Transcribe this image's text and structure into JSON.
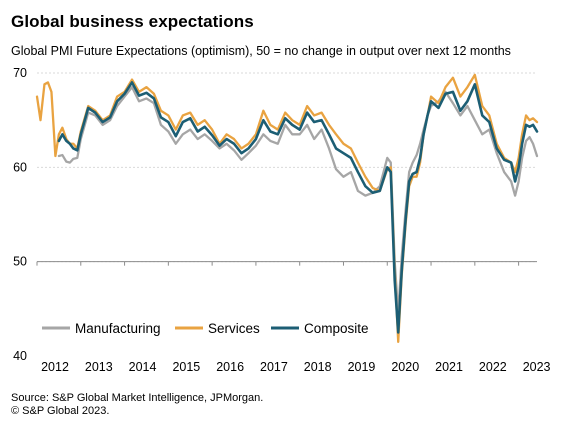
{
  "header": {
    "title": "Global business expectations",
    "subtitle": "Global PMI Future Expectations (optimism), 50 = no change in output over next 12 months"
  },
  "footer": {
    "source": "Source: S&P Global Market Intelligence, JPMorgan.",
    "copyright": "© S&P Global 2023."
  },
  "chart_data": {
    "type": "line",
    "title": "Global business expectations",
    "xlabel": "",
    "ylabel": "",
    "xlim": [
      2012.0,
      2023.42
    ],
    "ylim": [
      40,
      70
    ],
    "yticks": [
      40,
      50,
      60,
      70
    ],
    "xticks": [
      "2012",
      "2013",
      "2014",
      "2015",
      "2016",
      "2017",
      "2018",
      "2019",
      "2020",
      "2021",
      "2022",
      "2023"
    ],
    "grid": true,
    "legend_position": "bottom-left",
    "series": [
      {
        "name": "Manufacturing",
        "color": "#a6a6a6",
        "points": [
          [
            2012.5,
            61.2
          ],
          [
            2012.58,
            61.3
          ],
          [
            2012.67,
            60.6
          ],
          [
            2012.75,
            60.5
          ],
          [
            2012.83,
            60.9
          ],
          [
            2012.92,
            61.0
          ],
          [
            2013.0,
            63.0
          ],
          [
            2013.17,
            65.8
          ],
          [
            2013.33,
            65.5
          ],
          [
            2013.5,
            64.5
          ],
          [
            2013.67,
            65.0
          ],
          [
            2013.83,
            66.5
          ],
          [
            2014.0,
            67.5
          ],
          [
            2014.17,
            68.5
          ],
          [
            2014.33,
            67.0
          ],
          [
            2014.5,
            67.3
          ],
          [
            2014.67,
            66.8
          ],
          [
            2014.83,
            64.5
          ],
          [
            2015.0,
            63.8
          ],
          [
            2015.17,
            62.5
          ],
          [
            2015.33,
            63.5
          ],
          [
            2015.5,
            64.0
          ],
          [
            2015.67,
            63.0
          ],
          [
            2015.83,
            63.5
          ],
          [
            2016.0,
            62.8
          ],
          [
            2016.17,
            62.0
          ],
          [
            2016.33,
            62.5
          ],
          [
            2016.5,
            61.8
          ],
          [
            2016.67,
            60.8
          ],
          [
            2016.83,
            61.5
          ],
          [
            2017.0,
            62.3
          ],
          [
            2017.17,
            63.5
          ],
          [
            2017.33,
            62.8
          ],
          [
            2017.5,
            62.5
          ],
          [
            2017.67,
            64.5
          ],
          [
            2017.83,
            63.5
          ],
          [
            2018.0,
            63.5
          ],
          [
            2018.17,
            64.5
          ],
          [
            2018.33,
            63.0
          ],
          [
            2018.5,
            64.0
          ],
          [
            2018.67,
            62.0
          ],
          [
            2018.83,
            59.8
          ],
          [
            2019.0,
            59.0
          ],
          [
            2019.17,
            59.5
          ],
          [
            2019.33,
            57.5
          ],
          [
            2019.5,
            57.0
          ],
          [
            2019.67,
            57.3
          ],
          [
            2019.83,
            58.0
          ],
          [
            2020.0,
            61.0
          ],
          [
            2020.08,
            60.5
          ],
          [
            2020.17,
            50.0
          ],
          [
            2020.25,
            44.5
          ],
          [
            2020.33,
            50.5
          ],
          [
            2020.42,
            55.5
          ],
          [
            2020.5,
            59.5
          ],
          [
            2020.58,
            60.5
          ],
          [
            2020.67,
            61.3
          ],
          [
            2020.75,
            62.5
          ],
          [
            2020.83,
            64.0
          ],
          [
            2020.92,
            65.5
          ],
          [
            2021.0,
            66.5
          ],
          [
            2021.17,
            67.0
          ],
          [
            2021.33,
            68.0
          ],
          [
            2021.5,
            66.8
          ],
          [
            2021.67,
            65.5
          ],
          [
            2021.83,
            66.5
          ],
          [
            2022.0,
            65.0
          ],
          [
            2022.17,
            63.5
          ],
          [
            2022.33,
            64.0
          ],
          [
            2022.5,
            61.5
          ],
          [
            2022.67,
            59.5
          ],
          [
            2022.83,
            58.5
          ],
          [
            2022.92,
            57.0
          ],
          [
            2023.0,
            58.5
          ],
          [
            2023.08,
            61.0
          ],
          [
            2023.17,
            62.8
          ],
          [
            2023.25,
            63.2
          ],
          [
            2023.33,
            62.5
          ],
          [
            2023.42,
            61.2
          ]
        ]
      },
      {
        "name": "Services",
        "color": "#e9a341",
        "points": [
          [
            2012.0,
            67.5
          ],
          [
            2012.08,
            65.0
          ],
          [
            2012.17,
            68.8
          ],
          [
            2012.25,
            69.0
          ],
          [
            2012.33,
            68.0
          ],
          [
            2012.42,
            61.2
          ],
          [
            2012.5,
            63.5
          ],
          [
            2012.58,
            64.2
          ],
          [
            2012.67,
            63.0
          ],
          [
            2012.75,
            62.5
          ],
          [
            2012.83,
            62.5
          ],
          [
            2012.92,
            62.0
          ],
          [
            2013.0,
            63.8
          ],
          [
            2013.17,
            66.5
          ],
          [
            2013.33,
            66.0
          ],
          [
            2013.5,
            65.0
          ],
          [
            2013.67,
            65.5
          ],
          [
            2013.83,
            67.5
          ],
          [
            2014.0,
            68.0
          ],
          [
            2014.17,
            69.3
          ],
          [
            2014.33,
            68.0
          ],
          [
            2014.5,
            68.5
          ],
          [
            2014.67,
            67.8
          ],
          [
            2014.83,
            66.0
          ],
          [
            2015.0,
            65.5
          ],
          [
            2015.17,
            64.0
          ],
          [
            2015.33,
            65.5
          ],
          [
            2015.5,
            65.8
          ],
          [
            2015.67,
            64.5
          ],
          [
            2015.83,
            65.0
          ],
          [
            2016.0,
            64.0
          ],
          [
            2016.17,
            62.5
          ],
          [
            2016.33,
            63.5
          ],
          [
            2016.5,
            63.0
          ],
          [
            2016.67,
            62.0
          ],
          [
            2016.83,
            62.5
          ],
          [
            2017.0,
            63.5
          ],
          [
            2017.17,
            66.0
          ],
          [
            2017.33,
            64.5
          ],
          [
            2017.5,
            64.0
          ],
          [
            2017.67,
            65.8
          ],
          [
            2017.83,
            65.0
          ],
          [
            2018.0,
            64.5
          ],
          [
            2018.17,
            66.5
          ],
          [
            2018.33,
            65.5
          ],
          [
            2018.5,
            65.8
          ],
          [
            2018.67,
            64.5
          ],
          [
            2018.83,
            63.5
          ],
          [
            2019.0,
            62.5
          ],
          [
            2019.17,
            62.0
          ],
          [
            2019.33,
            60.5
          ],
          [
            2019.5,
            59.0
          ],
          [
            2019.67,
            57.8
          ],
          [
            2019.83,
            57.5
          ],
          [
            2020.0,
            59.8
          ],
          [
            2020.08,
            60.0
          ],
          [
            2020.17,
            49.0
          ],
          [
            2020.25,
            41.5
          ],
          [
            2020.33,
            48.5
          ],
          [
            2020.42,
            54.0
          ],
          [
            2020.5,
            58.0
          ],
          [
            2020.58,
            59.0
          ],
          [
            2020.67,
            59.0
          ],
          [
            2020.75,
            60.5
          ],
          [
            2020.83,
            63.5
          ],
          [
            2020.92,
            65.5
          ],
          [
            2021.0,
            67.5
          ],
          [
            2021.17,
            66.8
          ],
          [
            2021.33,
            68.5
          ],
          [
            2021.5,
            69.5
          ],
          [
            2021.67,
            67.5
          ],
          [
            2021.83,
            68.5
          ],
          [
            2022.0,
            69.8
          ],
          [
            2022.17,
            66.5
          ],
          [
            2022.33,
            65.5
          ],
          [
            2022.5,
            62.5
          ],
          [
            2022.67,
            61.0
          ],
          [
            2022.83,
            60.5
          ],
          [
            2022.92,
            59.5
          ],
          [
            2023.0,
            61.0
          ],
          [
            2023.08,
            63.5
          ],
          [
            2023.17,
            65.5
          ],
          [
            2023.25,
            65.0
          ],
          [
            2023.33,
            65.2
          ],
          [
            2023.42,
            64.8
          ]
        ]
      },
      {
        "name": "Composite",
        "color": "#1c5e74",
        "points": [
          [
            2012.5,
            62.8
          ],
          [
            2012.58,
            63.5
          ],
          [
            2012.67,
            62.8
          ],
          [
            2012.75,
            62.5
          ],
          [
            2012.83,
            62.0
          ],
          [
            2012.92,
            61.8
          ],
          [
            2013.0,
            63.5
          ],
          [
            2013.17,
            66.3
          ],
          [
            2013.33,
            65.8
          ],
          [
            2013.5,
            64.8
          ],
          [
            2013.67,
            65.3
          ],
          [
            2013.83,
            67.0
          ],
          [
            2014.0,
            67.8
          ],
          [
            2014.17,
            69.0
          ],
          [
            2014.33,
            67.6
          ],
          [
            2014.5,
            67.9
          ],
          [
            2014.67,
            67.3
          ],
          [
            2014.83,
            65.3
          ],
          [
            2015.0,
            64.8
          ],
          [
            2015.17,
            63.3
          ],
          [
            2015.33,
            64.8
          ],
          [
            2015.5,
            65.2
          ],
          [
            2015.67,
            63.8
          ],
          [
            2015.83,
            64.3
          ],
          [
            2016.0,
            63.4
          ],
          [
            2016.17,
            62.3
          ],
          [
            2016.33,
            63.0
          ],
          [
            2016.5,
            62.5
          ],
          [
            2016.67,
            61.5
          ],
          [
            2016.83,
            62.0
          ],
          [
            2017.0,
            63.0
          ],
          [
            2017.17,
            65.0
          ],
          [
            2017.33,
            63.8
          ],
          [
            2017.5,
            63.5
          ],
          [
            2017.67,
            65.2
          ],
          [
            2017.83,
            64.5
          ],
          [
            2018.0,
            64.0
          ],
          [
            2018.17,
            65.8
          ],
          [
            2018.33,
            64.8
          ],
          [
            2018.5,
            65.0
          ],
          [
            2018.67,
            63.5
          ],
          [
            2018.83,
            62.0
          ],
          [
            2019.0,
            61.5
          ],
          [
            2019.17,
            61.0
          ],
          [
            2019.33,
            59.5
          ],
          [
            2019.5,
            58.0
          ],
          [
            2019.67,
            57.3
          ],
          [
            2019.83,
            57.5
          ],
          [
            2020.0,
            60.0
          ],
          [
            2020.08,
            59.5
          ],
          [
            2020.17,
            48.0
          ],
          [
            2020.25,
            42.5
          ],
          [
            2020.33,
            49.0
          ],
          [
            2020.42,
            54.5
          ],
          [
            2020.5,
            58.5
          ],
          [
            2020.58,
            59.3
          ],
          [
            2020.67,
            59.5
          ],
          [
            2020.75,
            61.0
          ],
          [
            2020.83,
            63.5
          ],
          [
            2020.92,
            65.5
          ],
          [
            2021.0,
            67.0
          ],
          [
            2021.17,
            66.3
          ],
          [
            2021.33,
            67.8
          ],
          [
            2021.5,
            68.0
          ],
          [
            2021.67,
            66.0
          ],
          [
            2021.83,
            67.0
          ],
          [
            2022.0,
            68.8
          ],
          [
            2022.17,
            65.5
          ],
          [
            2022.33,
            64.8
          ],
          [
            2022.5,
            62.0
          ],
          [
            2022.67,
            60.8
          ],
          [
            2022.83,
            60.5
          ],
          [
            2022.92,
            58.5
          ],
          [
            2023.0,
            60.0
          ],
          [
            2023.08,
            62.5
          ],
          [
            2023.17,
            64.5
          ],
          [
            2023.25,
            64.3
          ],
          [
            2023.33,
            64.5
          ],
          [
            2023.42,
            63.8
          ]
        ]
      }
    ]
  }
}
